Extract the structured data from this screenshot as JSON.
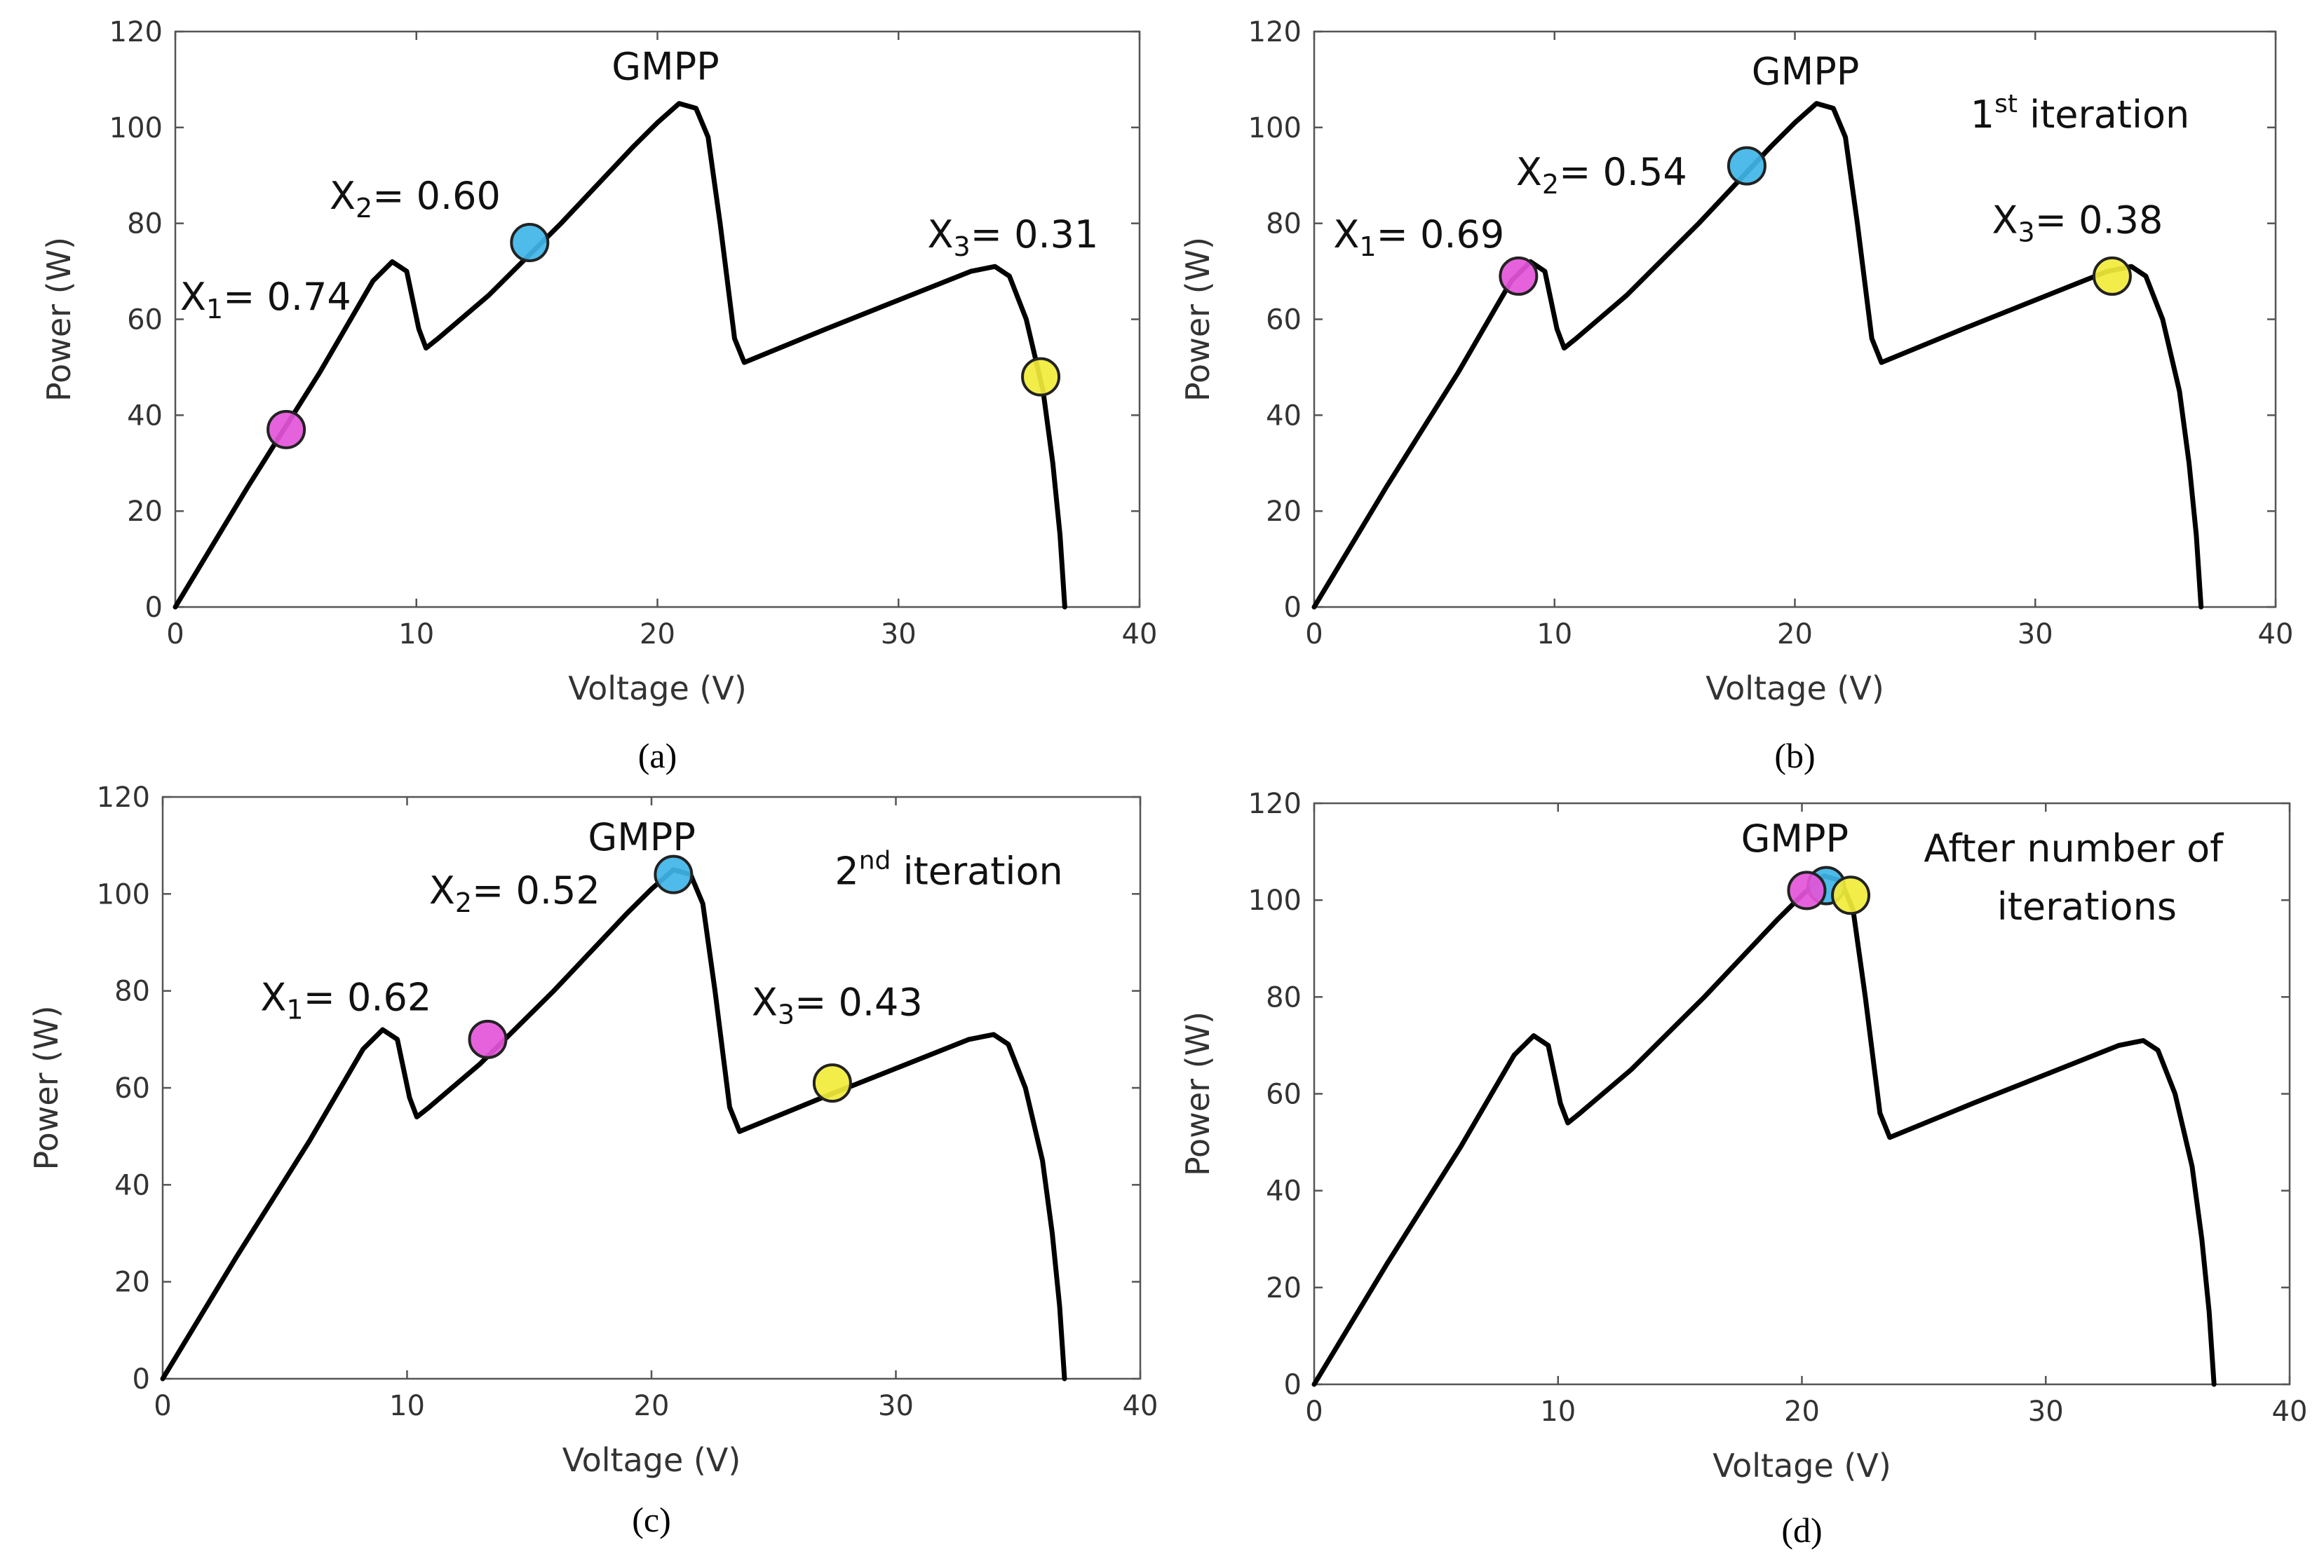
{
  "chart_data": [
    {
      "type": "line",
      "caption": "(a)",
      "xlabel": "Voltage (V)",
      "ylabel": "Power (W)",
      "xlim": [
        0,
        40
      ],
      "ylim": [
        0,
        120
      ],
      "xticks": [
        "0",
        "10",
        "20",
        "30",
        "40"
      ],
      "yticks": [
        "0",
        "20",
        "40",
        "60",
        "80",
        "100",
        "120"
      ],
      "curve": [
        [
          0,
          0
        ],
        [
          3,
          25
        ],
        [
          6,
          49
        ],
        [
          8.2,
          68
        ],
        [
          9,
          72
        ],
        [
          9.6,
          70
        ],
        [
          10.1,
          58
        ],
        [
          10.4,
          54
        ],
        [
          10.9,
          56
        ],
        [
          13,
          65
        ],
        [
          16,
          80
        ],
        [
          19,
          96
        ],
        [
          20,
          101
        ],
        [
          20.9,
          105
        ],
        [
          21.6,
          104
        ],
        [
          22.1,
          98
        ],
        [
          22.6,
          80
        ],
        [
          23.2,
          56
        ],
        [
          23.6,
          51
        ],
        [
          27,
          58
        ],
        [
          30,
          64
        ],
        [
          33,
          70
        ],
        [
          34,
          71
        ],
        [
          34.6,
          69
        ],
        [
          35.3,
          60
        ],
        [
          36,
          45
        ],
        [
          36.4,
          30
        ],
        [
          36.7,
          15
        ],
        [
          36.9,
          0
        ]
      ],
      "curve_color": "#000000",
      "markers": [
        {
          "x": 4.6,
          "y": 37,
          "color": "#e455d9"
        },
        {
          "x": 14.7,
          "y": 76,
          "color": "#3fb5e8"
        },
        {
          "x": 35.9,
          "y": 48,
          "color": "#f2ec3a"
        }
      ],
      "annotations": [
        {
          "x": 0.2,
          "y": 62,
          "base": "X",
          "sub": "1",
          "text": "= 0.74"
        },
        {
          "x": 6.4,
          "y": 83,
          "base": "X",
          "sub": "2",
          "text": "= 0.60"
        },
        {
          "x": 31.2,
          "y": 75,
          "base": "X",
          "sub": "3",
          "text": "= 0.31"
        },
        {
          "x": 18.1,
          "y": 110,
          "text": "GMPP"
        }
      ]
    },
    {
      "type": "line",
      "caption": "(b)",
      "xlabel": "Voltage (V)",
      "ylabel": "Power (W)",
      "xlim": [
        0,
        40
      ],
      "ylim": [
        0,
        120
      ],
      "xticks": [
        "0",
        "10",
        "20",
        "30",
        "40"
      ],
      "yticks": [
        "0",
        "20",
        "40",
        "60",
        "80",
        "100",
        "120"
      ],
      "curve": [
        [
          0,
          0
        ],
        [
          3,
          25
        ],
        [
          6,
          49
        ],
        [
          8.2,
          68
        ],
        [
          9,
          72
        ],
        [
          9.6,
          70
        ],
        [
          10.1,
          58
        ],
        [
          10.4,
          54
        ],
        [
          10.9,
          56
        ],
        [
          13,
          65
        ],
        [
          16,
          80
        ],
        [
          19,
          96
        ],
        [
          20,
          101
        ],
        [
          20.9,
          105
        ],
        [
          21.6,
          104
        ],
        [
          22.1,
          98
        ],
        [
          22.6,
          80
        ],
        [
          23.2,
          56
        ],
        [
          23.6,
          51
        ],
        [
          27,
          58
        ],
        [
          30,
          64
        ],
        [
          33,
          70
        ],
        [
          34,
          71
        ],
        [
          34.6,
          69
        ],
        [
          35.3,
          60
        ],
        [
          36,
          45
        ],
        [
          36.4,
          30
        ],
        [
          36.7,
          15
        ],
        [
          36.9,
          0
        ]
      ],
      "curve_color": "#000000",
      "markers": [
        {
          "x": 8.5,
          "y": 69,
          "color": "#e455d9"
        },
        {
          "x": 18.0,
          "y": 92,
          "color": "#3fb5e8"
        },
        {
          "x": 33.2,
          "y": 69,
          "color": "#f2ec3a"
        }
      ],
      "annotations": [
        {
          "x": 0.8,
          "y": 75,
          "base": "X",
          "sub": "1",
          "text": "= 0.69"
        },
        {
          "x": 8.4,
          "y": 88,
          "base": "X",
          "sub": "2",
          "text": "= 0.54"
        },
        {
          "x": 28.2,
          "y": 78,
          "base": "X",
          "sub": "3",
          "text": "= 0.38"
        },
        {
          "x": 18.2,
          "y": 109,
          "text": "GMPP"
        },
        {
          "x": 27.3,
          "y": 100,
          "base": "1",
          "sup": "st",
          "text": " iteration"
        }
      ]
    },
    {
      "type": "line",
      "caption": "(c)",
      "xlabel": "Voltage (V)",
      "ylabel": "Power (W)",
      "xlim": [
        0,
        40
      ],
      "ylim": [
        0,
        120
      ],
      "xticks": [
        "0",
        "10",
        "20",
        "30",
        "40"
      ],
      "yticks": [
        "0",
        "20",
        "40",
        "60",
        "80",
        "100",
        "120"
      ],
      "curve": [
        [
          0,
          0
        ],
        [
          3,
          25
        ],
        [
          6,
          49
        ],
        [
          8.2,
          68
        ],
        [
          9,
          72
        ],
        [
          9.6,
          70
        ],
        [
          10.1,
          58
        ],
        [
          10.4,
          54
        ],
        [
          10.9,
          56
        ],
        [
          13,
          65
        ],
        [
          16,
          80
        ],
        [
          19,
          96
        ],
        [
          20,
          101
        ],
        [
          20.9,
          105
        ],
        [
          21.6,
          104
        ],
        [
          22.1,
          98
        ],
        [
          22.6,
          80
        ],
        [
          23.2,
          56
        ],
        [
          23.6,
          51
        ],
        [
          27,
          58
        ],
        [
          30,
          64
        ],
        [
          33,
          70
        ],
        [
          34,
          71
        ],
        [
          34.6,
          69
        ],
        [
          35.3,
          60
        ],
        [
          36,
          45
        ],
        [
          36.4,
          30
        ],
        [
          36.7,
          15
        ],
        [
          36.9,
          0
        ]
      ],
      "curve_color": "#000000",
      "markers": [
        {
          "x": 13.3,
          "y": 70,
          "color": "#e455d9"
        },
        {
          "x": 20.9,
          "y": 104,
          "color": "#3fb5e8"
        },
        {
          "x": 27.4,
          "y": 61,
          "color": "#f2ec3a"
        }
      ],
      "annotations": [
        {
          "x": 4.0,
          "y": 76,
          "base": "X",
          "sub": "1",
          "text": "= 0.62"
        },
        {
          "x": 10.9,
          "y": 98,
          "base": "X",
          "sub": "2",
          "text": "= 0.52"
        },
        {
          "x": 24.1,
          "y": 75,
          "base": "X",
          "sub": "3",
          "text": "= 0.43"
        },
        {
          "x": 17.4,
          "y": 109,
          "text": "GMPP"
        },
        {
          "x": 27.5,
          "y": 102,
          "base": "2",
          "sup": "nd",
          "text": " iteration"
        }
      ]
    },
    {
      "type": "line",
      "caption": "(d)",
      "xlabel": "Voltage (V)",
      "ylabel": "Power (W)",
      "xlim": [
        0,
        40
      ],
      "ylim": [
        0,
        120
      ],
      "xticks": [
        "0",
        "10",
        "20",
        "30",
        "40"
      ],
      "yticks": [
        "0",
        "20",
        "40",
        "60",
        "80",
        "100",
        "120"
      ],
      "curve": [
        [
          0,
          0
        ],
        [
          3,
          25
        ],
        [
          6,
          49
        ],
        [
          8.2,
          68
        ],
        [
          9,
          72
        ],
        [
          9.6,
          70
        ],
        [
          10.1,
          58
        ],
        [
          10.4,
          54
        ],
        [
          10.9,
          56
        ],
        [
          13,
          65
        ],
        [
          16,
          80
        ],
        [
          19,
          96
        ],
        [
          20,
          101
        ],
        [
          20.9,
          105
        ],
        [
          21.6,
          104
        ],
        [
          22.1,
          98
        ],
        [
          22.6,
          80
        ],
        [
          23.2,
          56
        ],
        [
          23.6,
          51
        ],
        [
          27,
          58
        ],
        [
          30,
          64
        ],
        [
          33,
          70
        ],
        [
          34,
          71
        ],
        [
          34.6,
          69
        ],
        [
          35.3,
          60
        ],
        [
          36,
          45
        ],
        [
          36.4,
          30
        ],
        [
          36.7,
          15
        ],
        [
          36.9,
          0
        ]
      ],
      "curve_color": "#000000",
      "markers": [
        {
          "x": 21.0,
          "y": 103,
          "color": "#3fb5e8"
        },
        {
          "x": 20.2,
          "y": 102,
          "color": "#e455d9"
        },
        {
          "x": 22.0,
          "y": 101,
          "color": "#f2ec3a"
        }
      ],
      "annotations": [
        {
          "x": 17.5,
          "y": 110,
          "text": "GMPP"
        },
        {
          "x": 25.0,
          "y": 108,
          "text": "After number of"
        },
        {
          "x": 28.0,
          "y": 96,
          "text": "iterations"
        }
      ]
    }
  ]
}
